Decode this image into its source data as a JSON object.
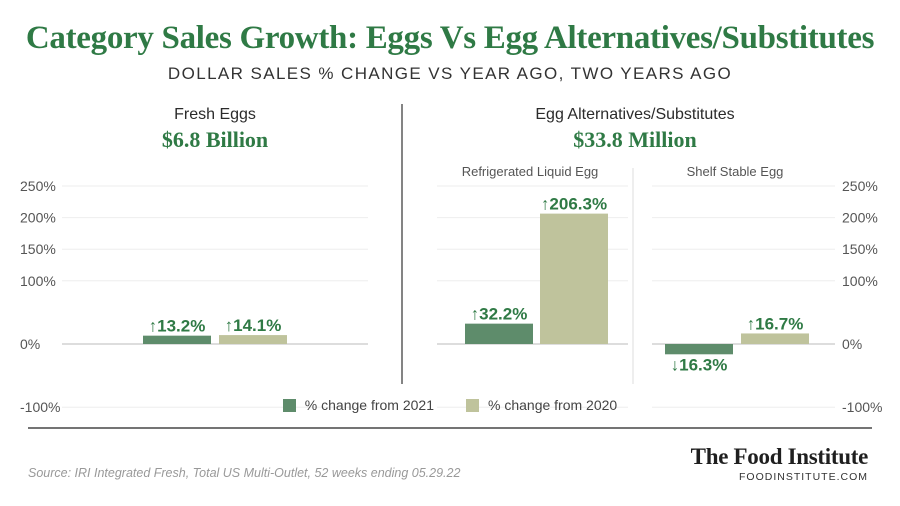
{
  "header": {
    "title": "Category Sales Growth: Eggs Vs Egg Alternatives/Substitutes",
    "subtitle": "DOLLAR SALES % CHANGE VS YEAR AGO, TWO YEARS AGO"
  },
  "sections": {
    "fresh": {
      "label": "Fresh Eggs",
      "value": "$6.8 Billion"
    },
    "alt": {
      "label": "Egg Alternatives/Substitutes",
      "value": "$33.8 Million",
      "sub_left": "Refrigerated Liquid Egg",
      "sub_right": "Shelf Stable Egg"
    }
  },
  "colors": {
    "series_2021": "#5e8c6b",
    "series_2020": "#bfc39c",
    "accent": "#2f7a45"
  },
  "chart_data": {
    "type": "bar",
    "categories": [
      "Fresh Eggs",
      "Refrigerated Liquid Egg",
      "Shelf Stable Egg"
    ],
    "series": [
      {
        "name": "% change from 2021",
        "values": [
          13.2,
          32.2,
          -16.3
        ],
        "labels": [
          "↑13.2%",
          "↑32.2%",
          "↓16.3%"
        ]
      },
      {
        "name": "% change from 2020",
        "values": [
          14.1,
          206.3,
          16.7
        ],
        "labels": [
          "↑14.1%",
          "↑206.3%",
          "↑16.7%"
        ]
      }
    ],
    "ylim": [
      -100,
      250
    ],
    "yticks": [
      250,
      200,
      150,
      100,
      0,
      -100
    ],
    "ytick_labels": [
      "250%",
      "200%",
      "150%",
      "100%",
      "0%",
      "-100%"
    ],
    "grid": true,
    "legend": "bottom-center"
  },
  "footer": {
    "source": "Source: IRI Integrated Fresh, Total US Multi-Outlet, 52 weeks ending 05.29.22",
    "brand": "The Food Institute",
    "brand_url": "FOODINSTITUTE.COM"
  }
}
